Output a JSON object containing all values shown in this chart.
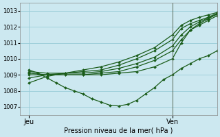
{
  "xlabel": "Pression niveau de la mer( hPa )",
  "ylim": [
    1006.5,
    1013.5
  ],
  "xlim": [
    0,
    44
  ],
  "yticks": [
    1007,
    1008,
    1009,
    1010,
    1011,
    1012,
    1013
  ],
  "xtick_positions": [
    2,
    34
  ],
  "xtick_labels": [
    "Jeu",
    "Ven"
  ],
  "vline_x": 34,
  "bg_color": "#cce8f0",
  "grid_color": "#99ccd8",
  "line_color": "#1a5c1a",
  "marker": "D",
  "marker_size": 2.0,
  "linewidth": 0.9,
  "series": [
    {
      "x": [
        2,
        4,
        6,
        8,
        10,
        12,
        14,
        16,
        18,
        20,
        22,
        24,
        26,
        28,
        30,
        32,
        34,
        36,
        38,
        40,
        42,
        44
      ],
      "y": [
        1009.3,
        1009.1,
        1008.8,
        1008.5,
        1008.2,
        1008.0,
        1007.8,
        1007.5,
        1007.3,
        1007.1,
        1007.05,
        1007.15,
        1007.4,
        1007.8,
        1008.2,
        1008.7,
        1009.0,
        1009.4,
        1009.7,
        1010.0,
        1010.2,
        1010.5
      ]
    },
    {
      "x": [
        2,
        6,
        10,
        14,
        18,
        22,
        26,
        30,
        34,
        36,
        38,
        40,
        42,
        44
      ],
      "y": [
        1009.0,
        1009.0,
        1009.0,
        1009.0,
        1009.0,
        1009.1,
        1009.2,
        1009.5,
        1010.0,
        1011.0,
        1011.8,
        1012.2,
        1012.5,
        1012.8
      ]
    },
    {
      "x": [
        2,
        6,
        10,
        14,
        18,
        22,
        26,
        30,
        34,
        36,
        38,
        40,
        42,
        44
      ],
      "y": [
        1009.1,
        1009.0,
        1009.0,
        1009.0,
        1009.1,
        1009.2,
        1009.5,
        1009.9,
        1010.5,
        1011.2,
        1011.8,
        1012.1,
        1012.4,
        1012.7
      ]
    },
    {
      "x": [
        2,
        6,
        10,
        14,
        18,
        22,
        26,
        30,
        34,
        36,
        38,
        40,
        42,
        44
      ],
      "y": [
        1009.2,
        1009.1,
        1009.1,
        1009.1,
        1009.2,
        1009.4,
        1009.7,
        1010.1,
        1010.8,
        1011.5,
        1012.0,
        1012.3,
        1012.55,
        1012.8
      ]
    },
    {
      "x": [
        2,
        6,
        10,
        14,
        18,
        22,
        26,
        30,
        34,
        36,
        38,
        40,
        42,
        44
      ],
      "y": [
        1008.8,
        1009.0,
        1009.1,
        1009.2,
        1009.3,
        1009.6,
        1010.0,
        1010.5,
        1011.2,
        1011.9,
        1012.2,
        1012.4,
        1012.6,
        1012.85
      ]
    },
    {
      "x": [
        2,
        6,
        10,
        14,
        18,
        22,
        26,
        30,
        34,
        36,
        38,
        40,
        42,
        44
      ],
      "y": [
        1008.5,
        1008.9,
        1009.1,
        1009.3,
        1009.5,
        1009.8,
        1010.2,
        1010.7,
        1011.5,
        1012.1,
        1012.4,
        1012.6,
        1012.75,
        1012.9
      ]
    }
  ]
}
